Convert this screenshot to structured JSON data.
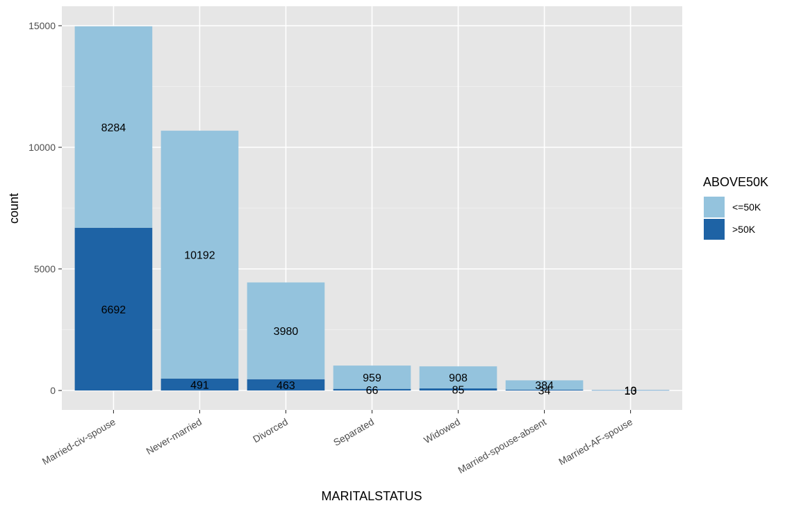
{
  "chart_data": {
    "type": "bar",
    "stacked": true,
    "xlabel": "MARITALSTATUS",
    "ylabel": "count",
    "ylim": [
      -800,
      15800
    ],
    "yticks": [
      0,
      5000,
      10000,
      15000
    ],
    "grid": true,
    "legend_position": "right",
    "categories": [
      "Married-civ-spouse",
      "Never-married",
      "Divorced",
      "Separated",
      "Widowed",
      "Married-spouse-absent",
      "Married-AF-spouse"
    ],
    "legend": {
      "title": "ABOVE50K",
      "entries": [
        "<=50K",
        ">50K"
      ]
    },
    "series": [
      {
        "name": "<=50K",
        "color": "#94c3dd",
        "values": [
          8284,
          10192,
          3980,
          959,
          908,
          384,
          13
        ]
      },
      {
        "name": ">50K",
        "color": "#1e63a5",
        "values": [
          6692,
          491,
          463,
          66,
          85,
          34,
          10
        ]
      }
    ]
  }
}
